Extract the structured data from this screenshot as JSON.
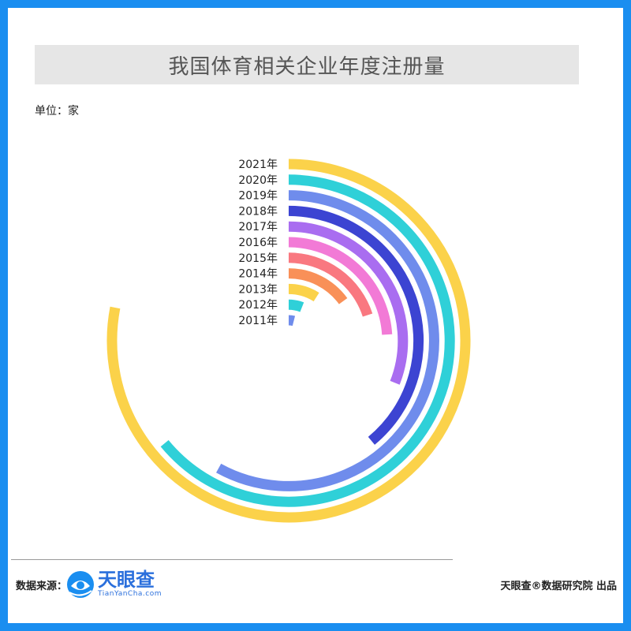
{
  "title": "我国体育相关企业年度注册量",
  "unit_label": "单位：家",
  "footer": {
    "source_label": "数据来源：",
    "logo_name": "天眼查",
    "logo_domain": "TianYanCha.com",
    "producer": "天眼查®数据研究院 出品"
  },
  "colors": {
    "background_border": "#1a8ef0",
    "brand_blue": "#2a6fdc"
  },
  "chart_data": {
    "type": "radial-bar",
    "title": "我国体育相关企业年度注册量",
    "unit": "家",
    "categories": [
      "2021年",
      "2020年",
      "2019年",
      "2018年",
      "2017年",
      "2016年",
      "2015年",
      "2014年",
      "2013年",
      "2012年",
      "2011年"
    ],
    "fractions_of_max": [
      0.78,
      0.64,
      0.58,
      0.39,
      0.31,
      0.24,
      0.2,
      0.15,
      0.09,
      0.06,
      0.04
    ],
    "colors": [
      "#fbd24a",
      "#2fd0d8",
      "#6f8cec",
      "#3c44d2",
      "#a96df0",
      "#f27ad6",
      "#f97880",
      "#f99058",
      "#fbd24a",
      "#2fd0d8",
      "#6f8cec"
    ],
    "start_angle": "top",
    "direction": "clockwise"
  }
}
